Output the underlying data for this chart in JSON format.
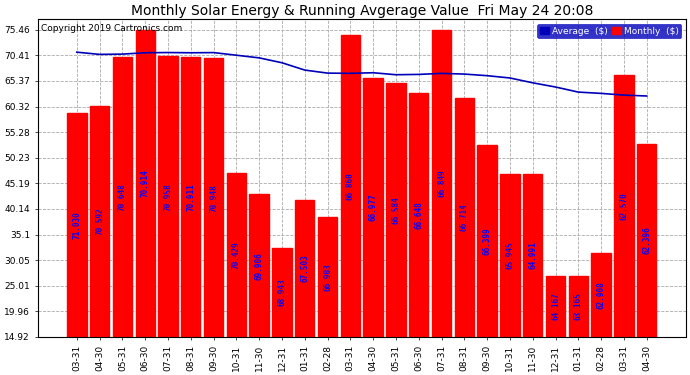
{
  "title": "Monthly Solar Energy & Running Avgerage Value  Fri May 24 20:08",
  "copyright": "Copyright 2019 Cartronics.com",
  "categories": [
    "03-31",
    "04-30",
    "05-31",
    "06-30",
    "07-31",
    "08-31",
    "09-30",
    "10-31",
    "11-30",
    "12-31",
    "01-31",
    "02-28",
    "03-31",
    "04-30",
    "05-31",
    "06-30",
    "07-31",
    "08-31",
    "09-30",
    "10-31",
    "11-30",
    "12-31",
    "01-31",
    "02-28",
    "03-31",
    "04-30"
  ],
  "bar_values": [
    59.0,
    60.5,
    70.0,
    75.46,
    70.2,
    70.0,
    69.8,
    47.2,
    43.0,
    32.5,
    42.0,
    38.5,
    74.5,
    66.0,
    65.0,
    63.0,
    75.46,
    62.0,
    52.8,
    47.0,
    47.0,
    27.0,
    27.0,
    31.5,
    66.5,
    53.0
  ],
  "bar_labels": [
    "71.030",
    "70.592",
    "70.648",
    "70.914",
    "70.958",
    "70.911",
    "70.948",
    "70.429",
    "69.906",
    "68.943",
    "67.503",
    "66.903",
    "66.860",
    "66.977",
    "66.584",
    "66.648",
    "66.849",
    "66.714",
    "66.399",
    "65.945",
    "64.991",
    "64.167",
    "63.165",
    "62.908",
    "62.570",
    "62.396"
  ],
  "avg_values": [
    71.03,
    70.592,
    70.648,
    70.914,
    70.958,
    70.911,
    70.948,
    70.429,
    69.906,
    68.943,
    67.503,
    66.903,
    66.86,
    66.977,
    66.584,
    66.648,
    66.849,
    66.714,
    66.399,
    65.945,
    64.991,
    64.167,
    63.165,
    62.908,
    62.57,
    62.396
  ],
  "bar_color": "#ff0000",
  "bar_label_color": "#0000ff",
  "avg_line_color": "#0000bb",
  "background_color": "#ffffff",
  "ytick_values": [
    14.92,
    19.96,
    25.01,
    30.05,
    35.1,
    40.14,
    45.19,
    50.23,
    55.28,
    60.32,
    65.37,
    70.41,
    75.46
  ],
  "ymin": 14.92,
  "ymax": 77.5,
  "legend_avg_label": "Average  ($)",
  "legend_monthly_label": "Monthly  ($)",
  "title_fontsize": 10,
  "copyright_fontsize": 6.5,
  "tick_fontsize": 6.5,
  "bar_label_fontsize": 5.5
}
